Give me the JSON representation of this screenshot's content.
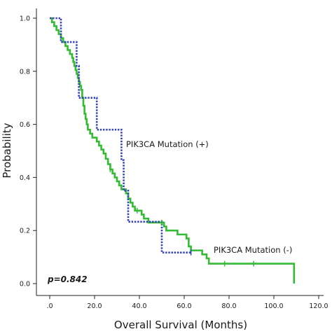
{
  "chart_data": {
    "type": "line",
    "subtype": "kaplan-meier",
    "title": "",
    "xlabel": "Overall Survival (Months)",
    "ylabel": "Probability",
    "xlim": [
      0,
      120
    ],
    "ylim": [
      0,
      1.0
    ],
    "x_ticks": [
      0,
      20,
      40,
      60,
      80,
      100,
      120
    ],
    "x_tick_labels": [
      ".0",
      "20.0",
      "40.0",
      "60.0",
      "80.0",
      "100.0",
      "120.0"
    ],
    "y_ticks": [
      0,
      0.2,
      0.4,
      0.6,
      0.8,
      1.0
    ],
    "y_tick_labels": [
      "0.0",
      "0.2",
      "0.4",
      "0.6",
      "0.8",
      "1.0"
    ],
    "grid": false,
    "annotation": "p=0.842",
    "series": [
      {
        "label": "PIK3CA Mutation (+)",
        "color": "#3344bb",
        "style": "dotted",
        "steps": [
          [
            0,
            1.0
          ],
          [
            5,
            0.91
          ],
          [
            12,
            0.82
          ],
          [
            13,
            0.7
          ],
          [
            21,
            0.58
          ],
          [
            32,
            0.465
          ],
          [
            33,
            0.35
          ],
          [
            35,
            0.233
          ],
          [
            50,
            0.117
          ],
          [
            63,
            0.117
          ]
        ],
        "censored": [
          [
            63,
            0.117
          ]
        ]
      },
      {
        "label": "PIK3CA Mutation (-)",
        "color": "#33bb33",
        "style": "solid",
        "steps": [
          [
            0,
            1.0
          ],
          [
            1,
            0.985
          ],
          [
            2,
            0.97
          ],
          [
            3,
            0.955
          ],
          [
            4,
            0.94
          ],
          [
            5,
            0.925
          ],
          [
            6,
            0.91
          ],
          [
            7,
            0.895
          ],
          [
            8,
            0.88
          ],
          [
            9,
            0.865
          ],
          [
            10,
            0.85
          ],
          [
            10.5,
            0.835
          ],
          [
            11,
            0.82
          ],
          [
            11.5,
            0.805
          ],
          [
            12,
            0.79
          ],
          [
            12.5,
            0.775
          ],
          [
            13,
            0.76
          ],
          [
            13.5,
            0.745
          ],
          [
            14,
            0.73
          ],
          [
            14.5,
            0.7
          ],
          [
            15,
            0.67
          ],
          [
            15.5,
            0.64
          ],
          [
            16,
            0.62
          ],
          [
            16.5,
            0.6
          ],
          [
            17,
            0.58
          ],
          [
            18,
            0.565
          ],
          [
            19,
            0.55
          ],
          [
            21,
            0.535
          ],
          [
            22,
            0.52
          ],
          [
            23,
            0.505
          ],
          [
            24,
            0.49
          ],
          [
            25,
            0.47
          ],
          [
            26,
            0.45
          ],
          [
            27,
            0.43
          ],
          [
            28,
            0.415
          ],
          [
            29,
            0.4
          ],
          [
            30,
            0.385
          ],
          [
            31,
            0.37
          ],
          [
            32,
            0.355
          ],
          [
            34,
            0.34
          ],
          [
            35,
            0.32
          ],
          [
            36,
            0.305
          ],
          [
            37,
            0.29
          ],
          [
            38,
            0.275
          ],
          [
            41,
            0.26
          ],
          [
            42,
            0.245
          ],
          [
            44,
            0.23
          ],
          [
            51,
            0.215
          ],
          [
            52,
            0.2
          ],
          [
            57,
            0.185
          ],
          [
            61,
            0.17
          ],
          [
            62,
            0.14
          ],
          [
            63,
            0.125
          ],
          [
            68,
            0.11
          ],
          [
            70,
            0.095
          ],
          [
            71,
            0.075
          ],
          [
            109,
            0.075
          ],
          [
            109,
            0.0
          ]
        ],
        "censored": [
          [
            27,
            0.43
          ],
          [
            39,
            0.275
          ],
          [
            50,
            0.23
          ],
          [
            63,
            0.125
          ],
          [
            78,
            0.075
          ],
          [
            91,
            0.075
          ]
        ]
      }
    ]
  }
}
